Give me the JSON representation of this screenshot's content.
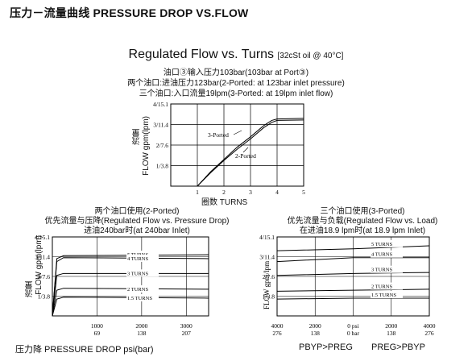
{
  "header": {
    "title": "压力－流量曲线 PRESSURE DROP VS.FLOW"
  },
  "main_chart": {
    "title": "Regulated Flow vs. Turns",
    "title_note": "[32cSt oil @ 40°C]",
    "note1": "油口③输入压力103bar(103bar at Port③)",
    "note2": "两个油口:进油压力123bar(2-Ported: at 123bar inlet pressure)",
    "note3": "三个油口:入口流量19lpm(3-Ported: at 19lpm inlet flow)",
    "ylabel_cn": "流量",
    "ylabel": "FLOW gpm(lpm)",
    "xlabel": "圈数 TURNS",
    "yticks": [
      "4/15.1",
      "3/11.4",
      "2/7.6",
      "1/3.8"
    ],
    "xticks": [
      "1",
      "2",
      "3",
      "4",
      "5"
    ],
    "label_3": "3-Ported",
    "label_2": "2-Ported"
  },
  "left_chart": {
    "cap1": "两个油口使用(2-Ported)",
    "cap2": "优先流量与压降(Regulated Flow vs. Pressure Drop)",
    "cap3": "进油240bar时(at 240bar Inlet)",
    "ylabel_cn": "流量",
    "ylabel": "FLOW gpm(lpm)",
    "yticks": [
      "4/15.1",
      "3/11.4",
      "2/7.6",
      "1/3.8"
    ],
    "xticks_top": [
      "1000",
      "2000",
      "3000"
    ],
    "xticks_bottom": [
      "69",
      "138",
      "207"
    ],
    "turn_labels": [
      "5 TURNS",
      "4 TURNS",
      "3 TURNS",
      "2 TURNS",
      "1.5 TURNS"
    ],
    "footer": "压力降 PRESSURE DROP psi(bar)"
  },
  "right_chart": {
    "cap1": "三个油口使用(3-Ported)",
    "cap2": "优先流量与负载(Regulated Flow vs. Load)",
    "cap3": "在进油18.9 lpm时(at 18.9 lpm Inlet)",
    "ylabel": "FLOW gpm/lpm",
    "yticks": [
      "4/15.1",
      "3/11.4",
      "2/7.6",
      "1/3.8"
    ],
    "xticks_top": [
      "4000",
      "2000",
      "0 psi",
      "2000",
      "4000"
    ],
    "xticks_bottom": [
      "276",
      "138",
      "0 bar",
      "138",
      "276"
    ],
    "turn_labels": [
      "5 TURNS",
      "4 TURNS",
      "3 TURNS",
      "2 TURNS",
      "1.5 TURNS"
    ],
    "footer_left": "PBYP>PREG",
    "footer_right": "PREG>PBYP"
  },
  "chart_data": [
    {
      "type": "line",
      "title": "Regulated Flow vs. Turns",
      "xlabel": "圈数 TURNS",
      "ylabel": "FLOW gpm(lpm)",
      "xlim": [
        0,
        5
      ],
      "ylim": [
        0,
        4
      ],
      "series": [
        {
          "name": "3-Ported",
          "x": [
            1,
            1.5,
            2,
            2.5,
            3,
            3.5,
            3.8,
            4,
            5
          ],
          "y": [
            0,
            0.7,
            1.3,
            1.9,
            2.4,
            2.95,
            3.2,
            3.27,
            3.3
          ]
        },
        {
          "name": "2-Ported",
          "x": [
            1,
            1.5,
            2,
            2.5,
            3,
            3.5,
            3.8,
            4,
            5
          ],
          "y": [
            0,
            0.65,
            1.25,
            1.8,
            2.3,
            2.85,
            3.1,
            3.2,
            3.22
          ]
        }
      ]
    },
    {
      "type": "line",
      "title": "Regulated Flow vs. Pressure Drop",
      "xlabel": "PRESSURE DROP psi(bar)",
      "ylabel": "FLOW gpm(lpm)",
      "xlim": [
        0,
        3500
      ],
      "ylim": [
        0,
        4
      ],
      "series": [
        {
          "name": "5 TURNS",
          "x": [
            0,
            100,
            250,
            3500
          ],
          "y": [
            0,
            2.9,
            3.05,
            3.1
          ]
        },
        {
          "name": "4 TURNS",
          "x": [
            0,
            100,
            250,
            3500
          ],
          "y": [
            0,
            2.75,
            2.95,
            2.9
          ]
        },
        {
          "name": "3 TURNS",
          "x": [
            0,
            100,
            250,
            3500
          ],
          "y": [
            0,
            2.05,
            2.15,
            2.15
          ]
        },
        {
          "name": "2 TURNS",
          "x": [
            0,
            100,
            250,
            3500
          ],
          "y": [
            0,
            1.3,
            1.4,
            1.35
          ]
        },
        {
          "name": "1.5 TURNS",
          "x": [
            0,
            100,
            250,
            3500
          ],
          "y": [
            0,
            0.85,
            0.95,
            0.9
          ]
        }
      ]
    },
    {
      "type": "line",
      "title": "Regulated Flow vs. Load",
      "xlabel": "psi / bar",
      "ylabel": "FLOW gpm/lpm",
      "xlim": [
        -4000,
        4000
      ],
      "ylim": [
        0,
        4
      ],
      "series": [
        {
          "name": "5 TURNS",
          "x": [
            -4000,
            0,
            4000
          ],
          "y": [
            3.3,
            3.4,
            3.55
          ]
        },
        {
          "name": "4 TURNS",
          "x": [
            -4000,
            0,
            4000
          ],
          "y": [
            2.75,
            2.95,
            2.95
          ]
        },
        {
          "name": "3 TURNS",
          "x": [
            -4000,
            0,
            4000
          ],
          "y": [
            2.05,
            2.15,
            2.2
          ]
        },
        {
          "name": "2 TURNS",
          "x": [
            -4000,
            0,
            4000
          ],
          "y": [
            1.25,
            1.3,
            1.35
          ]
        },
        {
          "name": "1.5 TURNS",
          "x": [
            -4000,
            0,
            4000
          ],
          "y": [
            0.85,
            0.9,
            0.9
          ]
        }
      ]
    }
  ]
}
